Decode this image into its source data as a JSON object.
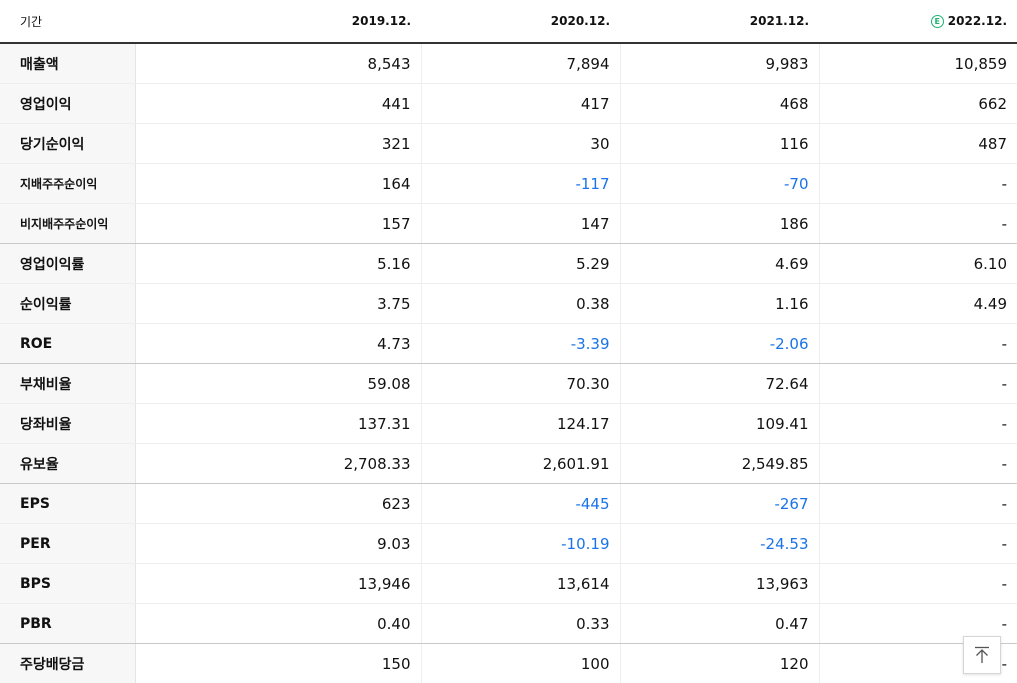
{
  "header": {
    "period_label": "기간",
    "columns": [
      "2019.12.",
      "2020.12.",
      "2021.12.",
      "2022.12."
    ],
    "estimate_badge": "E"
  },
  "rows": [
    {
      "label": "매출액",
      "values": [
        "8,543",
        "7,894",
        "9,983",
        "10,859"
      ]
    },
    {
      "label": "영업이익",
      "values": [
        "441",
        "417",
        "468",
        "662"
      ]
    },
    {
      "label": "당기순이익",
      "values": [
        "321",
        "30",
        "116",
        "487"
      ]
    },
    {
      "label": "지배주주순이익",
      "values": [
        "164",
        "-117",
        "-70",
        "-"
      ]
    },
    {
      "label": "비지배주주순이익",
      "values": [
        "157",
        "147",
        "186",
        "-"
      ]
    },
    {
      "label": "영업이익률",
      "values": [
        "5.16",
        "5.29",
        "4.69",
        "6.10"
      ]
    },
    {
      "label": "순이익률",
      "values": [
        "3.75",
        "0.38",
        "1.16",
        "4.49"
      ]
    },
    {
      "label": "ROE",
      "values": [
        "4.73",
        "-3.39",
        "-2.06",
        "-"
      ]
    },
    {
      "label": "부채비율",
      "values": [
        "59.08",
        "70.30",
        "72.64",
        "-"
      ]
    },
    {
      "label": "당좌비율",
      "values": [
        "137.31",
        "124.17",
        "109.41",
        "-"
      ]
    },
    {
      "label": "유보율",
      "values": [
        "2,708.33",
        "2,601.91",
        "2,549.85",
        "-"
      ]
    },
    {
      "label": "EPS",
      "values": [
        "623",
        "-445",
        "-267",
        "-"
      ]
    },
    {
      "label": "PER",
      "values": [
        "9.03",
        "-10.19",
        "-24.53",
        "-"
      ]
    },
    {
      "label": "BPS",
      "values": [
        "13,946",
        "13,614",
        "13,963",
        "-"
      ]
    },
    {
      "label": "PBR",
      "values": [
        "0.40",
        "0.33",
        "0.47",
        "-"
      ]
    },
    {
      "label": "주당배당금",
      "values": [
        "150",
        "100",
        "120",
        "-"
      ]
    }
  ],
  "colors": {
    "negative": "#1a73e8",
    "estimate": "#1db26e",
    "label_bg": "#f7f7f7"
  },
  "scroll_top_icon": "arrow-up-to-top-icon"
}
